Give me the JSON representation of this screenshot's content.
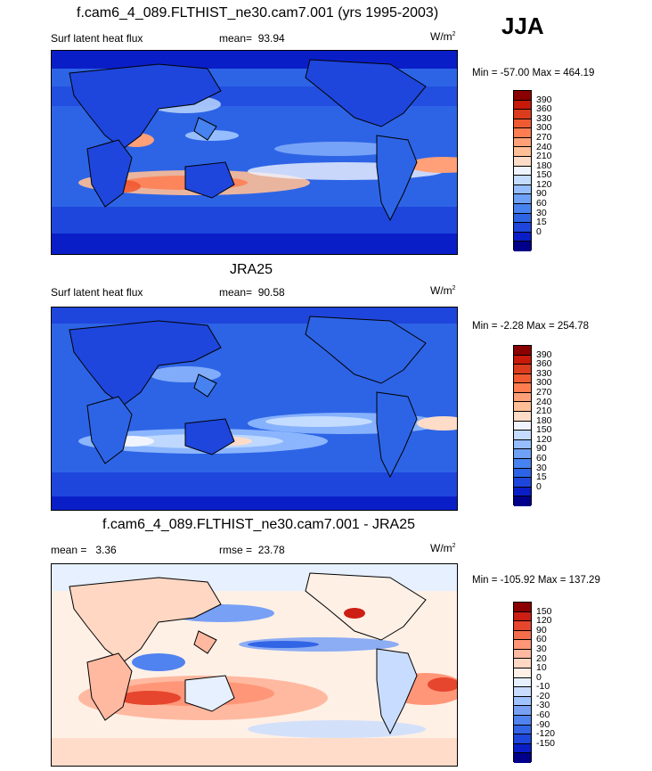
{
  "season": "JJA",
  "colors": {
    "abs_scale": [
      "#00008b",
      "#0a1ec8",
      "#1e46dc",
      "#2d64e6",
      "#4682f0",
      "#6ea0f5",
      "#96beff",
      "#c3dcff",
      "#f0f4ff",
      "#ffdcc8",
      "#ffbe96",
      "#ffa078",
      "#ff7d50",
      "#f05a32",
      "#dc3c1e",
      "#c8190a",
      "#8b0000"
    ],
    "diff_scale": [
      "#00008b",
      "#0a1ec8",
      "#1e46dc",
      "#3264e6",
      "#5082f0",
      "#78a0f5",
      "#a0c3ff",
      "#c8dcff",
      "#e6f0ff",
      "#fff0e6",
      "#ffd7c3",
      "#ffb9a0",
      "#ff9678",
      "#f56e4b",
      "#e6462d",
      "#cd1e14",
      "#8b0000"
    ]
  },
  "panels": [
    {
      "title": "f.cam6_4_089.FLTHIST_ne30.cam7.001 (yrs 1995-2003)",
      "variable": "Surf latent heat flux",
      "mean_label": "mean=",
      "mean_value": "93.94",
      "units_base": "W/m",
      "units_exp": "2",
      "minmax": "Min = -57.00 Max = 464.19",
      "ticks": [
        "390",
        "360",
        "330",
        "300",
        "270",
        "240",
        "210",
        "180",
        "150",
        "120",
        "90",
        "60",
        "30",
        "15",
        "0"
      ],
      "palette": "abs"
    },
    {
      "title": "JRA25",
      "variable": "Surf latent heat flux",
      "mean_label": "mean=",
      "mean_value": "90.58",
      "units_base": "W/m",
      "units_exp": "2",
      "minmax": "Min =  -2.28 Max = 254.78",
      "ticks": [
        "390",
        "360",
        "330",
        "300",
        "270",
        "240",
        "210",
        "180",
        "150",
        "120",
        "90",
        "60",
        "30",
        "15",
        "0"
      ],
      "palette": "abs"
    },
    {
      "title": "f.cam6_4_089.FLTHIST_ne30.cam7.001 - JRA25",
      "mean_label": "mean =",
      "mean_value": "3.36",
      "rmse_label": "rmse =",
      "rmse_value": "23.78",
      "units_base": "W/m",
      "units_exp": "2",
      "minmax": "Min = -105.92 Max = 137.29",
      "ticks": [
        "150",
        "120",
        "90",
        "60",
        "30",
        "20",
        "10",
        "0",
        "-10",
        "-20",
        "-30",
        "-60",
        "-90",
        "-120",
        "-150"
      ],
      "palette": "diff"
    }
  ]
}
